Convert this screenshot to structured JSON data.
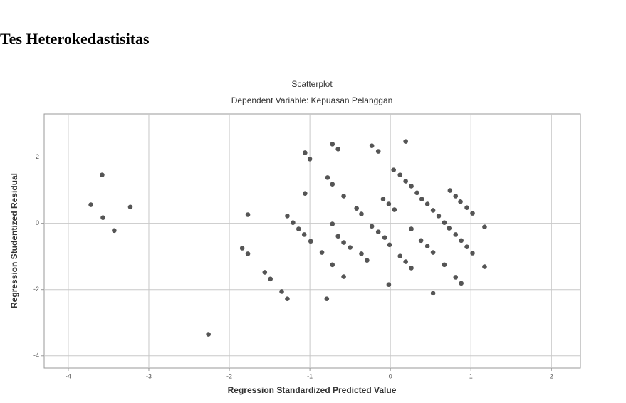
{
  "heading": "Tes Heterokedastisitas",
  "chart_data": {
    "type": "scatter",
    "title": "Scatterplot",
    "subtitle": "Dependent Variable: Kepuasan Pelanggan",
    "x_label": "Regression Standardized Predicted Value",
    "y_label": "Regression Studentized Residual",
    "color": "#555555",
    "grid": true,
    "xlim": [
      -4.3,
      2.36
    ],
    "ylim": [
      -4.37,
      3.3
    ],
    "xticks": [
      -4,
      -3,
      -2,
      -1,
      0,
      1,
      2
    ],
    "yticks": [
      -4,
      -2,
      0,
      2
    ],
    "x": [
      -3.72,
      -3.58,
      -3.57,
      -3.43,
      -3.23,
      -2.26,
      -1.77,
      -1.84,
      -1.77,
      -1.56,
      -1.49,
      -1.35,
      -1.28,
      -1.28,
      -1.21,
      -1.14,
      -1.07,
      -0.99,
      -1.06,
      -1.0,
      -1.06,
      -0.85,
      -0.79,
      -0.78,
      -0.72,
      -0.72,
      -0.65,
      -0.72,
      -0.72,
      -0.65,
      -0.58,
      -0.58,
      -0.58,
      -0.5,
      -0.42,
      -0.36,
      -0.36,
      -0.29,
      -0.23,
      -0.15,
      -0.23,
      -0.15,
      -0.07,
      -0.01,
      -0.09,
      -0.02,
      0.05,
      -0.02,
      0.04,
      0.12,
      0.12,
      0.19,
      0.19,
      0.26,
      0.19,
      0.26,
      0.26,
      0.33,
      0.39,
      0.38,
      0.46,
      0.46,
      0.53,
      0.53,
      0.53,
      0.6,
      0.67,
      0.67,
      0.73,
      0.74,
      0.81,
      0.81,
      0.81,
      0.87,
      0.88,
      0.88,
      0.95,
      0.95,
      1.02,
      1.02,
      1.17,
      1.17
    ],
    "values": [
      0.56,
      1.46,
      0.17,
      -0.22,
      0.49,
      -3.35,
      0.26,
      -0.75,
      -0.92,
      -1.48,
      -1.68,
      -2.06,
      -2.28,
      0.22,
      0.02,
      -0.17,
      -0.34,
      -0.54,
      2.13,
      1.94,
      0.9,
      -0.88,
      -2.28,
      1.38,
      1.18,
      2.39,
      2.24,
      -0.02,
      -1.25,
      -0.39,
      0.82,
      -0.58,
      -1.61,
      -0.73,
      0.45,
      0.28,
      -0.92,
      -1.12,
      2.34,
      2.17,
      -0.09,
      -0.26,
      -0.43,
      -0.65,
      0.73,
      0.58,
      0.41,
      -1.85,
      1.61,
      1.46,
      -0.99,
      2.47,
      1.27,
      1.12,
      -1.16,
      -1.35,
      -0.17,
      0.92,
      0.73,
      -0.52,
      0.58,
      -0.69,
      0.39,
      -0.88,
      -2.11,
      0.22,
      0.02,
      -1.25,
      -0.15,
      0.99,
      0.82,
      -0.34,
      -1.63,
      0.65,
      -0.52,
      -1.81,
      0.47,
      -0.71,
      0.3,
      -0.9,
      -0.11,
      -1.31
    ]
  }
}
